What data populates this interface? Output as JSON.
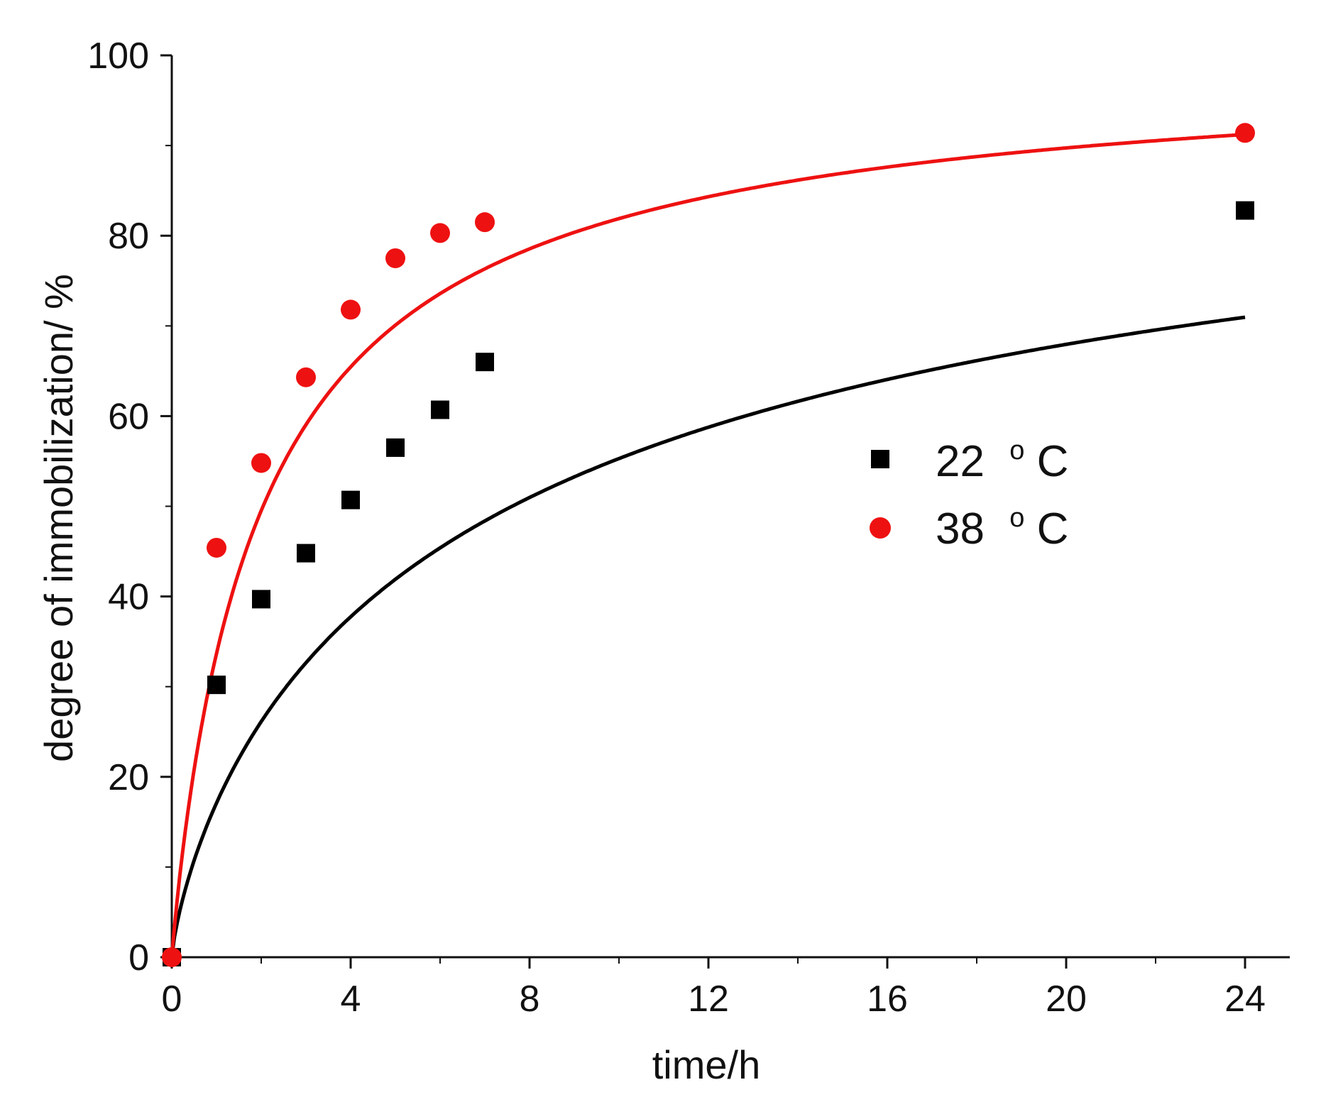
{
  "chart_data": {
    "type": "scatter",
    "title": "",
    "xlabel": "time/h",
    "ylabel": "degree of immobilization/ %",
    "xlim": [
      0,
      25
    ],
    "ylim": [
      0,
      100
    ],
    "xticks": [
      0,
      4,
      8,
      12,
      16,
      20,
      24
    ],
    "xticks_minor": [
      2,
      6,
      10,
      14,
      18,
      22
    ],
    "yticks": [
      0,
      20,
      40,
      60,
      80,
      100
    ],
    "yticks_minor": [
      10,
      30,
      50,
      70,
      90
    ],
    "legend_position": "center-right",
    "series": [
      {
        "name": "22 oC",
        "label_number": "22",
        "label_degree": "o",
        "label_unit": "C",
        "color": "#000000",
        "marker": "square",
        "x": [
          0,
          1,
          2,
          3,
          4,
          5,
          6,
          7,
          24
        ],
        "y": [
          0,
          30.2,
          39.7,
          44.8,
          50.7,
          56.5,
          60.7,
          66.0,
          82.8
        ],
        "fit": {
          "model": "saturation",
          "ymax": 100,
          "k": 4.85,
          "n": 0.778
        }
      },
      {
        "name": "38 oC",
        "label_number": "38",
        "label_degree": "o",
        "label_unit": "C",
        "color": "#ee1111",
        "marker": "circle",
        "x": [
          0,
          1,
          2,
          3,
          4,
          5,
          6,
          7,
          24
        ],
        "y": [
          0,
          45.4,
          54.8,
          64.3,
          71.8,
          77.5,
          80.3,
          81.5,
          91.4
        ],
        "fit": {
          "model": "saturation",
          "ymax": 100,
          "k": 1.97,
          "n": 0.95
        }
      }
    ]
  }
}
